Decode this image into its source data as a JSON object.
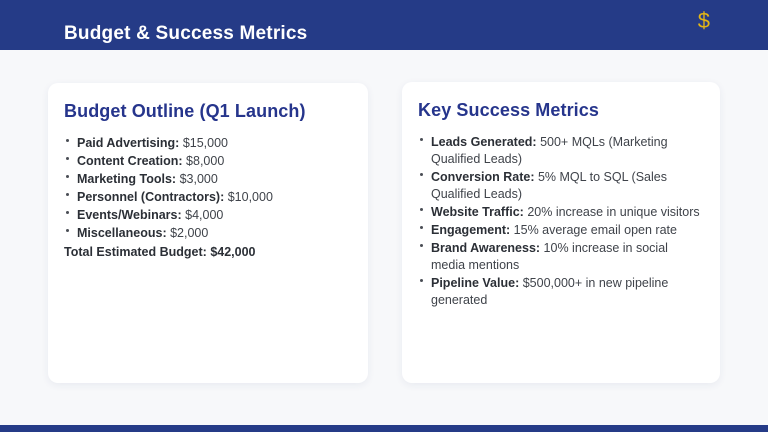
{
  "header": {
    "title": "Budget & Success Metrics",
    "dollar_icon_glyph": "$",
    "bg_color": "#253b87",
    "icon_color": "#e2b515"
  },
  "budget_card": {
    "title": "Budget Outline (Q1 Launch)",
    "items": [
      {
        "label": "Paid Advertising:",
        "value": " $15,000"
      },
      {
        "label": "Content Creation:",
        "value": " $8,000"
      },
      {
        "label": "Marketing Tools:",
        "value": " $3,000"
      },
      {
        "label": "Personnel (Contractors):",
        "value": " $10,000"
      },
      {
        "label": "Events/Webinars:",
        "value": " $4,000"
      },
      {
        "label": "Miscellaneous:",
        "value": " $2,000"
      }
    ],
    "total_label": "Total Estimated Budget:",
    "total_value": " $42,000"
  },
  "metrics_card": {
    "title": "Key Success Metrics",
    "items": [
      {
        "label": "Leads Generated:",
        "value": " 500+ MQLs (Marketing Qualified Leads)"
      },
      {
        "label": "Conversion Rate:",
        "value": " 5% MQL to SQL (Sales Qualified Leads)"
      },
      {
        "label": "Website Traffic:",
        "value": " 20% increase in unique visitors"
      },
      {
        "label": "Engagement:",
        "value": " 15% average email open rate"
      },
      {
        "label": "Brand Awareness:",
        "value": " 10% increase in social media mentions"
      },
      {
        "label": "Pipeline Value:",
        "value": " $500,000+ in new pipeline generated"
      }
    ]
  },
  "colors": {
    "header_bg": "#253b87",
    "footer_bg": "#253b87",
    "card_title": "#26358c",
    "body_text": "#3f434a",
    "label_text": "#2b2f36",
    "page_bg": "#f7f8fa",
    "accent_gold": "#e2b515"
  }
}
